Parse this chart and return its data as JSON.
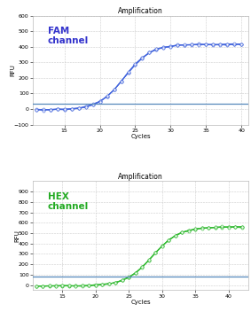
{
  "fam": {
    "title": "Amplification",
    "label": "FAM\nchannel",
    "label_color": "#3333cc",
    "line_color": "#4466dd",
    "marker_color": "#4466dd",
    "threshold_color": "#5588bb",
    "threshold_y": 35,
    "x_start": 11,
    "x_end": 40,
    "ylim": [
      -100,
      600
    ],
    "yticks": [
      -100,
      0,
      100,
      200,
      300,
      400,
      500,
      600
    ],
    "xlim": [
      10.5,
      41
    ],
    "xticks": [
      15,
      20,
      25,
      30,
      35,
      40
    ],
    "xlabel": "Cycles",
    "ylabel": "RFU",
    "sigmoid_L": 420,
    "sigmoid_k": 0.55,
    "sigmoid_x0": 23.5,
    "sigmoid_base": -5
  },
  "hex": {
    "title": "Amplification",
    "label": "HEX\nchannel",
    "label_color": "#22aa22",
    "line_color": "#33bb33",
    "marker_color": "#33bb33",
    "threshold_color": "#5588bb",
    "threshold_y": 85,
    "x_start": 11,
    "x_end": 42,
    "ylim": [
      -50,
      1000
    ],
    "yticks": [
      0,
      100,
      200,
      300,
      400,
      500,
      600,
      700,
      800,
      900
    ],
    "xlim": [
      10.5,
      43
    ],
    "xticks": [
      15,
      20,
      25,
      30,
      35,
      40
    ],
    "xlabel": "Cycles",
    "ylabel": "RFU",
    "sigmoid_L": 570,
    "sigmoid_k": 0.5,
    "sigmoid_x0": 28.5,
    "sigmoid_base": -10
  },
  "bg_color": "#ffffff",
  "figure_bg": "#ffffff",
  "title_fontsize": 5.5,
  "label_fontsize": 7.5,
  "axis_fontsize": 5,
  "tick_fontsize": 4.5
}
